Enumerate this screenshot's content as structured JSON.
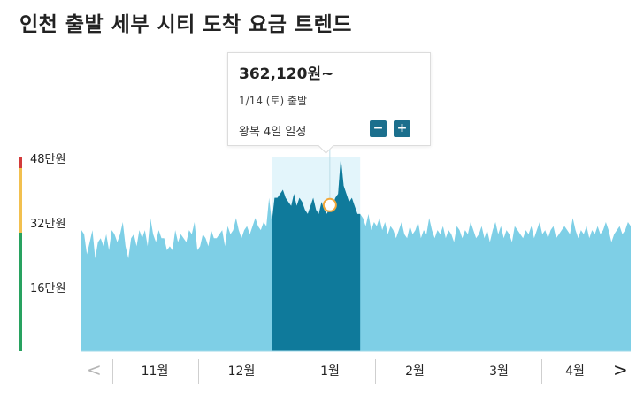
{
  "title": "인천 출발 세부 시티 도착 요금 트렌드",
  "tooltip": {
    "price": "362,120원~",
    "date": "1/14 (토) 출발",
    "trip": "왕복 4일 일정",
    "minus_label": "−",
    "plus_label": "+"
  },
  "nav": {
    "prev": "<",
    "next": ">"
  },
  "colors": {
    "area": "#7ecfe6",
    "selected_area": "#0f7a9b",
    "selected_bg": "#e3f5fb",
    "scale_high": "#d23b3b",
    "scale_mid": "#f2c04f",
    "scale_low": "#28a260",
    "marker": "#f2a83a"
  },
  "chart_data": {
    "type": "area",
    "ylabel": "",
    "y_ticks": [
      {
        "value": 480000,
        "label": "48만원"
      },
      {
        "value": 320000,
        "label": "32만원"
      },
      {
        "value": 160000,
        "label": "16만원"
      }
    ],
    "ylim": [
      0,
      480000
    ],
    "months": [
      "11월",
      "12월",
      "1월",
      "2월",
      "3월",
      "4월"
    ],
    "selected_range_days": [
      69,
      101
    ],
    "highlight": {
      "day": 90,
      "value": 362120
    },
    "daily_values": [
      300000,
      290000,
      240000,
      270000,
      300000,
      230000,
      270000,
      280000,
      260000,
      290000,
      250000,
      300000,
      290000,
      270000,
      290000,
      320000,
      260000,
      230000,
      280000,
      290000,
      260000,
      300000,
      280000,
      300000,
      260000,
      330000,
      290000,
      270000,
      300000,
      280000,
      280000,
      250000,
      260000,
      250000,
      300000,
      270000,
      290000,
      280000,
      270000,
      300000,
      290000,
      320000,
      250000,
      260000,
      290000,
      280000,
      260000,
      300000,
      280000,
      280000,
      290000,
      300000,
      260000,
      310000,
      290000,
      300000,
      330000,
      300000,
      280000,
      300000,
      310000,
      290000,
      310000,
      330000,
      310000,
      300000,
      320000,
      310000,
      380000,
      320000,
      380000,
      380000,
      390000,
      400000,
      380000,
      370000,
      360000,
      390000,
      360000,
      380000,
      370000,
      350000,
      340000,
      360000,
      380000,
      350000,
      340000,
      370000,
      350000,
      340000,
      362120,
      360000,
      380000,
      390000,
      480000,
      410000,
      390000,
      370000,
      380000,
      360000,
      340000,
      340000,
      330000,
      310000,
      340000,
      300000,
      320000,
      310000,
      330000,
      300000,
      320000,
      290000,
      310000,
      300000,
      280000,
      300000,
      320000,
      290000,
      280000,
      310000,
      290000,
      300000,
      320000,
      280000,
      300000,
      290000,
      330000,
      300000,
      280000,
      300000,
      290000,
      310000,
      280000,
      300000,
      290000,
      270000,
      310000,
      300000,
      280000,
      300000,
      290000,
      320000,
      300000,
      280000,
      290000,
      310000,
      280000,
      300000,
      270000,
      300000,
      320000,
      290000,
      310000,
      280000,
      300000,
      290000,
      270000,
      310000,
      300000,
      290000,
      280000,
      300000,
      290000,
      310000,
      280000,
      300000,
      320000,
      290000,
      300000,
      280000,
      300000,
      310000,
      280000,
      290000,
      300000,
      310000,
      300000,
      290000,
      330000,
      300000,
      280000,
      300000,
      290000,
      310000,
      280000,
      300000,
      290000,
      310000,
      290000,
      300000,
      320000,
      300000,
      270000,
      290000,
      300000,
      310000,
      290000,
      300000,
      320000,
      310000
    ]
  }
}
